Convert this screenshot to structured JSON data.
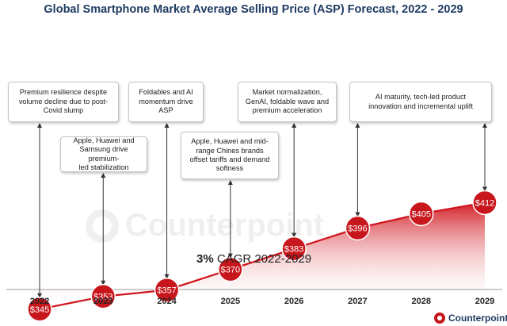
{
  "title": "Global Smartphone Market Average Selling Price (ASP) Forecast, 2022 - 2029",
  "chart_data": {
    "type": "area",
    "title": "Global Smartphone Market Average Selling Price (ASP) Forecast, 2022 - 2029",
    "categories": [
      "2022",
      "2023",
      "2024",
      "2025",
      "2026",
      "2027",
      "2028",
      "2029"
    ],
    "series": [
      {
        "name": "ASP",
        "values": [
          345,
          353,
          357,
          370,
          383,
          396,
          405,
          412
        ],
        "labels": [
          "$345",
          "$353",
          "$357",
          "$370",
          "$383",
          "$396",
          "$405",
          "$412"
        ]
      }
    ],
    "xlabel": "",
    "ylabel": "",
    "ylim": [
      300,
      500
    ],
    "grid": false,
    "colors": {
      "line": "#d0121b",
      "marker": "#c8161d",
      "fill_top": "#d0121b"
    }
  },
  "annotations": [
    {
      "year": "2022",
      "lines": [
        "Premium resilience despite",
        "volume decline due to post-",
        "Covid slump"
      ]
    },
    {
      "year": "2023",
      "lines": [
        "Apple, Huawei and",
        "Samsung drive premium-",
        "led stabilization"
      ]
    },
    {
      "year": "2024",
      "lines": [
        "Foldables and AI",
        "momentum drive",
        "ASP"
      ]
    },
    {
      "year": "2025",
      "lines": [
        "Apple, Huawei and mid-",
        "range Chines brands",
        "offset tariffs and demand",
        "softness"
      ]
    },
    {
      "year": "2026",
      "lines": [
        "Market normalization,",
        "GenAI, foldable wave and",
        "premium acceleration"
      ]
    },
    {
      "year": "2029",
      "lines": [
        "AI maturity, tech-led product",
        "innovation and incremental uplift"
      ]
    }
  ],
  "cagr": {
    "value": "3%",
    "text": "CAGR 2022-2029"
  },
  "brand": {
    "name": "Counterpoint",
    "icon": "counterpoint-logo-icon"
  },
  "watermark": "Counterpoint"
}
